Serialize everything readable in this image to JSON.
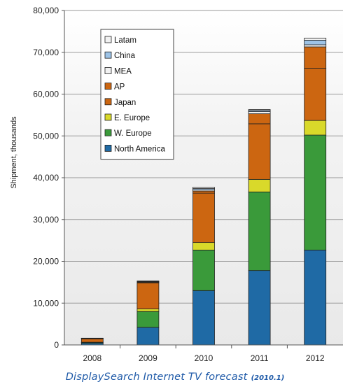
{
  "caption": {
    "main": "DisplaySearch Internet TV forecast",
    "sub": "(2010.1)"
  },
  "chart_data": {
    "type": "bar",
    "stacked": true,
    "title": "",
    "xlabel": "",
    "ylabel": "Shipment, thousands",
    "ylim": [
      0,
      80000
    ],
    "yticks": [
      0,
      10000,
      20000,
      30000,
      40000,
      50000,
      60000,
      70000,
      80000
    ],
    "ytick_labels": [
      "0",
      "10,000",
      "20,000",
      "30,000",
      "40,000",
      "50,000",
      "60,000",
      "70,000",
      "80,000"
    ],
    "grid": true,
    "legend_position": "top-left",
    "categories": [
      "2008",
      "2009",
      "2010",
      "2011",
      "2012"
    ],
    "series": [
      {
        "name": "North America",
        "color": "#1f6aa5",
        "values": [
          400,
          4200,
          13000,
          17800,
          22700
        ]
      },
      {
        "name": "W. Europe",
        "color": "#3a9a3a",
        "values": [
          200,
          3800,
          9700,
          18800,
          27500
        ]
      },
      {
        "name": "E. Europe",
        "color": "#d9d92a",
        "values": [
          50,
          600,
          1800,
          3000,
          3500
        ]
      },
      {
        "name": "Japan",
        "color": "#cc6611",
        "values": [
          800,
          6200,
          11800,
          13300,
          12500
        ]
      },
      {
        "name": "AP",
        "color": "#cc6611",
        "values": [
          100,
          200,
          500,
          2400,
          5100
        ]
      },
      {
        "name": "MEA",
        "color": "#f2f2f2",
        "values": [
          30,
          100,
          300,
          500,
          500
        ]
      },
      {
        "name": "China",
        "color": "#9dc3e6",
        "values": [
          20,
          100,
          300,
          300,
          1100
        ]
      },
      {
        "name": "Latam",
        "color": "#f2f2f2",
        "values": [
          20,
          100,
          300,
          200,
          500
        ]
      }
    ]
  }
}
